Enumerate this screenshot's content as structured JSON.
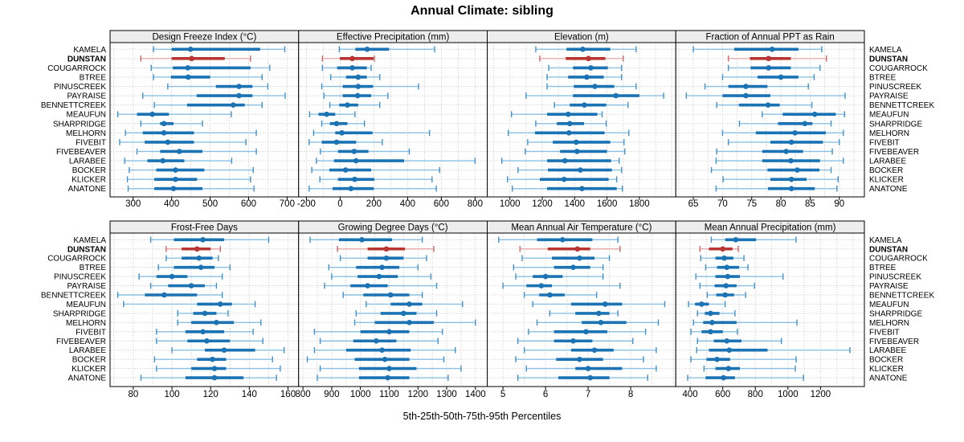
{
  "title": "Annual Climate: sibling",
  "footer": "5th-25th-50th-75th-95th Percentiles",
  "colors": {
    "blue": "#1b73b3",
    "light_blue": "#8cc0e2",
    "blue_cap": "#4191c9",
    "red": "#b93531",
    "light_red": "#e5aeac",
    "red_cap": "#cd6763",
    "strip_bg": "#ededed",
    "grid": "#c9c9c9",
    "border": "#000000"
  },
  "stations": [
    "KAMELA",
    "DUNSTAN",
    "COUGARROCK",
    "BTREE",
    "PINUSCREEK",
    "PAYRAISE",
    "BENNETTCREEK",
    "MEAUFUN",
    "SHARPRIDGE",
    "MELHORN",
    "FIVEBIT",
    "FIVEBEAVER",
    "LARABEE",
    "BOCKER",
    "KLICKER",
    "ANATONE"
  ],
  "chart_data": {
    "type": "dotplot-percentiles",
    "layout": "2x4 trellis",
    "highlight": "DUNSTAN",
    "percentile_labels": [
      "5th",
      "25th",
      "50th",
      "75th",
      "95th"
    ],
    "panels": [
      {
        "title": "Design Freeze Index (°C)",
        "xlim": [
          240,
          730
        ],
        "ticks": [
          300,
          400,
          500,
          600,
          700
        ],
        "grid_step": 50,
        "values": [
          [
            353,
            400,
            449,
            630,
            694
          ],
          [
            320,
            400,
            452,
            538,
            605
          ],
          [
            347,
            403,
            442,
            605,
            655
          ],
          [
            353,
            398,
            443,
            500,
            635
          ],
          [
            390,
            515,
            575,
            610,
            650
          ],
          [
            325,
            465,
            575,
            610,
            695
          ],
          [
            355,
            440,
            560,
            590,
            635
          ],
          [
            260,
            310,
            350,
            393,
            555
          ],
          [
            320,
            370,
            380,
            405,
            480
          ],
          [
            280,
            325,
            380,
            458,
            620
          ],
          [
            265,
            330,
            390,
            458,
            593
          ],
          [
            310,
            370,
            420,
            480,
            620
          ],
          [
            278,
            337,
            377,
            433,
            556
          ],
          [
            290,
            360,
            410,
            485,
            612
          ],
          [
            285,
            355,
            410,
            466,
            605
          ],
          [
            287,
            355,
            405,
            480,
            614
          ]
        ]
      },
      {
        "title": "Effective Precipitation (mm)",
        "xlim": [
          -246,
          872
        ],
        "ticks": [
          -200,
          0,
          200,
          400,
          600,
          800
        ],
        "grid_step": 100,
        "values": [
          [
            -5,
            90,
            160,
            290,
            560
          ],
          [
            -105,
            -2,
            72,
            198,
            203
          ],
          [
            -105,
            -18,
            72,
            158,
            184
          ],
          [
            -56,
            35,
            107,
            158,
            235
          ],
          [
            -109,
            15,
            107,
            195,
            465
          ],
          [
            -96,
            15,
            104,
            184,
            283
          ],
          [
            -61,
            -5,
            43,
            107,
            235
          ],
          [
            -181,
            -128,
            -80,
            -29,
            88
          ],
          [
            -109,
            -61,
            -21,
            43,
            144
          ],
          [
            -157,
            -29,
            11,
            192,
            530
          ],
          [
            -184,
            -109,
            -21,
            95,
            250
          ],
          [
            -117,
            -13,
            83,
            168,
            410
          ],
          [
            -141,
            -37,
            94,
            379,
            800
          ],
          [
            -168,
            -64,
            32,
            184,
            590
          ],
          [
            -120,
            -13,
            86,
            203,
            545
          ],
          [
            -184,
            -45,
            64,
            200,
            570
          ]
        ]
      },
      {
        "title": "Elevation (m)",
        "xlim": [
          860,
          2025
        ],
        "ticks": [
          1000,
          1200,
          1400,
          1600,
          1800
        ],
        "grid_step": 100,
        "values": [
          [
            1160,
            1350,
            1450,
            1620,
            1780
          ],
          [
            1185,
            1345,
            1485,
            1590,
            1700
          ],
          [
            1240,
            1390,
            1500,
            1605,
            1690
          ],
          [
            1230,
            1360,
            1475,
            1580,
            1690
          ],
          [
            1230,
            1395,
            1525,
            1645,
            1780
          ],
          [
            1100,
            1390,
            1655,
            1800,
            1950
          ],
          [
            1275,
            1370,
            1460,
            1595,
            1730
          ],
          [
            1010,
            1230,
            1360,
            1540,
            1570
          ],
          [
            1160,
            1290,
            1370,
            1458,
            1595
          ],
          [
            990,
            1155,
            1365,
            1585,
            1735
          ],
          [
            1110,
            1265,
            1410,
            1620,
            1705
          ],
          [
            1095,
            1310,
            1415,
            1600,
            1710
          ],
          [
            950,
            1230,
            1340,
            1625,
            1675
          ],
          [
            1050,
            1235,
            1435,
            1630,
            1690
          ],
          [
            985,
            1185,
            1335,
            1610,
            1660
          ],
          [
            1015,
            1230,
            1445,
            1660,
            1695
          ]
        ]
      },
      {
        "title": "Fraction of Annual PPT as Rain",
        "xlim": [
          62,
          94.3
        ],
        "ticks": [
          65,
          70,
          75,
          80,
          85,
          90
        ],
        "grid_step": 2.5,
        "values": [
          [
            65,
            72,
            78.5,
            83,
            87
          ],
          [
            71,
            74.7,
            77.9,
            81.7,
            87.8
          ],
          [
            71,
            74.8,
            77.9,
            81.7,
            86.7
          ],
          [
            70,
            76,
            80,
            83,
            85.7
          ],
          [
            67,
            71,
            74,
            77.7,
            84.7
          ],
          [
            63.8,
            70,
            74,
            78.2,
            91
          ],
          [
            69,
            72.8,
            77.8,
            79.8,
            85.3
          ],
          [
            76.8,
            80.3,
            85.8,
            89.4,
            90.9
          ],
          [
            72.9,
            79.5,
            84.1,
            85.4,
            88.6
          ],
          [
            70,
            75.7,
            82.4,
            87.7,
            90.7
          ],
          [
            71,
            78.2,
            81.8,
            87.2,
            90
          ],
          [
            69,
            76.8,
            80.9,
            83.8,
            88.8
          ],
          [
            68.9,
            76.8,
            81.7,
            86.7,
            90.7
          ],
          [
            68.1,
            77.7,
            82.8,
            86.6,
            88.6
          ],
          [
            70.1,
            78.2,
            81.8,
            84.4,
            89.8
          ],
          [
            68.9,
            77.8,
            81.8,
            85.8,
            89.6
          ]
        ]
      },
      {
        "title": "Frost-Free Days",
        "xlim": [
          68,
          165.5
        ],
        "ticks": [
          80,
          100,
          120,
          140,
          160
        ],
        "grid_step": 10,
        "values": [
          [
            89,
            101,
            116,
            127,
            150
          ],
          [
            97,
            105,
            113,
            120,
            125
          ],
          [
            97,
            105,
            114,
            121,
            124
          ],
          [
            93,
            101,
            115,
            122,
            130
          ],
          [
            83,
            92,
            100,
            108,
            126
          ],
          [
            89,
            98,
            110,
            117,
            123
          ],
          [
            72,
            86,
            96,
            113,
            126
          ],
          [
            75,
            113,
            125,
            131,
            143
          ],
          [
            103,
            111,
            117,
            123,
            129
          ],
          [
            103,
            110,
            123,
            132,
            146
          ],
          [
            92,
            107,
            116,
            127,
            142
          ],
          [
            92,
            108,
            118,
            130,
            147
          ],
          [
            100,
            117,
            127,
            143,
            158
          ],
          [
            91,
            113,
            121,
            128,
            152
          ],
          [
            92,
            110,
            122,
            128,
            156
          ],
          [
            84,
            107,
            122,
            137,
            154
          ]
        ]
      },
      {
        "title": "Growing Degree Days (°C)",
        "xlim": [
          785,
          1441
        ],
        "ticks": [
          800,
          900,
          1000,
          1100,
          1200,
          1300,
          1400
        ],
        "grid_step": 50,
        "values": [
          [
            825,
            925,
            1005,
            1110,
            1215
          ],
          [
            920,
            1025,
            1090,
            1155,
            1255
          ],
          [
            930,
            1025,
            1090,
            1150,
            1230
          ],
          [
            890,
            985,
            1075,
            1135,
            1200
          ],
          [
            900,
            990,
            1065,
            1130,
            1245
          ],
          [
            875,
            965,
            1025,
            1095,
            1265
          ],
          [
            940,
            1010,
            1105,
            1170,
            1215
          ],
          [
            1020,
            1105,
            1170,
            1215,
            1355
          ],
          [
            985,
            1070,
            1150,
            1195,
            1265
          ],
          [
            980,
            1050,
            1170,
            1255,
            1400
          ],
          [
            840,
            1000,
            1100,
            1170,
            1285
          ],
          [
            860,
            975,
            1055,
            1125,
            1270
          ],
          [
            840,
            950,
            1075,
            1175,
            1330
          ],
          [
            815,
            980,
            1085,
            1170,
            1290
          ],
          [
            860,
            995,
            1100,
            1195,
            1350
          ],
          [
            850,
            995,
            1095,
            1170,
            1305
          ]
        ]
      },
      {
        "title": "Mean Annual Air Temperature (°C)",
        "xlim": [
          4.63,
          9.06
        ],
        "ticks": [
          5,
          6,
          7,
          8
        ],
        "grid_step": 0.5,
        "values": [
          [
            4.9,
            5.8,
            6.4,
            7.1,
            7.7
          ],
          [
            5.4,
            6.05,
            6.75,
            7.05,
            7.75
          ],
          [
            5.45,
            6.15,
            6.8,
            7.15,
            7.5
          ],
          [
            5.25,
            6.2,
            6.65,
            7.05,
            7.35
          ],
          [
            5.3,
            5.7,
            6.0,
            6.4,
            7.35
          ],
          [
            5.0,
            5.55,
            5.9,
            6.15,
            7.75
          ],
          [
            5.5,
            5.85,
            6.1,
            6.45,
            7.2
          ],
          [
            5.7,
            6.6,
            7.4,
            7.8,
            8.8
          ],
          [
            6.1,
            6.7,
            7.25,
            7.5,
            7.7
          ],
          [
            5.8,
            6.85,
            7.3,
            7.9,
            8.65
          ],
          [
            5.6,
            6.2,
            6.95,
            7.45,
            8.35
          ],
          [
            5.35,
            6.2,
            6.65,
            7.1,
            8.05
          ],
          [
            5.5,
            6.6,
            7.15,
            7.6,
            8.6
          ],
          [
            5.3,
            6.25,
            6.8,
            7.35,
            8.3
          ],
          [
            5.55,
            6.7,
            7.0,
            7.8,
            8.6
          ],
          [
            5.35,
            6.3,
            7.05,
            7.5,
            8.4
          ]
        ]
      },
      {
        "title": "Mean Annual Precipitation (mm)",
        "xlim": [
          312,
          1469
        ],
        "ticks": [
          400,
          600,
          800,
          1000,
          1200
        ],
        "grid_step": 100,
        "values": [
          [
            530,
            615,
            680,
            805,
            1050
          ],
          [
            460,
            515,
            600,
            660,
            695
          ],
          [
            465,
            555,
            610,
            665,
            730
          ],
          [
            495,
            565,
            625,
            700,
            755
          ],
          [
            435,
            555,
            630,
            705,
            970
          ],
          [
            460,
            550,
            620,
            685,
            795
          ],
          [
            505,
            560,
            615,
            670,
            740
          ],
          [
            390,
            430,
            470,
            515,
            615
          ],
          [
            445,
            490,
            525,
            580,
            675
          ],
          [
            420,
            480,
            535,
            685,
            1055
          ],
          [
            405,
            470,
            525,
            600,
            690
          ],
          [
            445,
            545,
            625,
            715,
            960
          ],
          [
            440,
            515,
            640,
            875,
            1380
          ],
          [
            405,
            500,
            565,
            645,
            1050
          ],
          [
            485,
            555,
            635,
            705,
            1045
          ],
          [
            385,
            495,
            605,
            675,
            1095
          ]
        ]
      }
    ]
  }
}
